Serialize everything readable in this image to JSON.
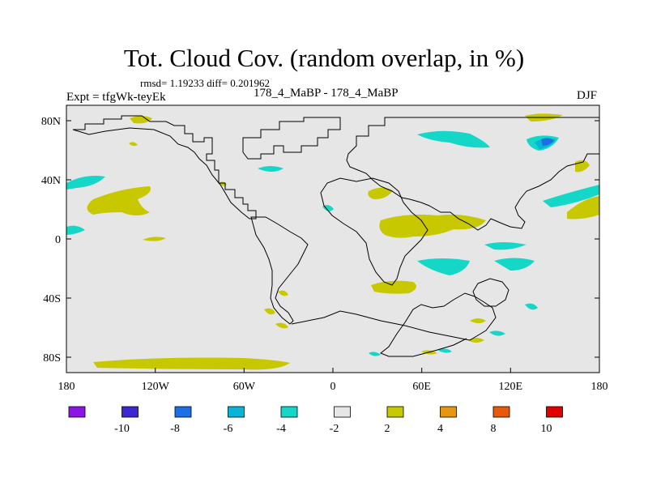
{
  "title": "Tot. Cloud Cov. (random overlap, in %)",
  "stats": "rmsd= 1.19233  diff= 0.201962",
  "experiment": "Expt = tfgWk-teyEk",
  "subtitle": "178_4_MaBP - 178_4_MaBP",
  "season": "DJF",
  "colors": {
    "background_field": "#e6e6e6",
    "land_outline": "#000000",
    "minus_4_to_2": "#14d7c8",
    "minus_6_to_4": "#0ab4d7",
    "minus_8_to_6": "#1e6ee6",
    "plus_2_to_4": "#c8c800",
    "plus_4_to_8": "#e69614"
  },
  "x_tick_labels": [
    "180",
    "120W",
    "60W",
    "0",
    "60E",
    "120E",
    "180"
  ],
  "y_tick_labels": [
    "80N",
    "40N",
    "0",
    "40S",
    "80S"
  ],
  "colorbar": {
    "colors": [
      "#8c14e6",
      "#3c28d2",
      "#1e6ee6",
      "#0ab4d7",
      "#14d7c8",
      "#e6e6e6",
      "#c8c800",
      "#e69614",
      "#e65a0a",
      "#e10000"
    ],
    "labels": [
      "-10",
      "-8",
      "-6",
      "-4",
      "-2",
      "2",
      "4",
      "8",
      "10"
    ]
  }
}
